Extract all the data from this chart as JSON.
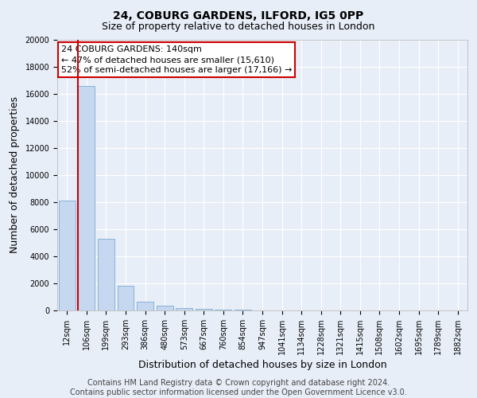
{
  "title1": "24, COBURG GARDENS, ILFORD, IG5 0PP",
  "title2": "Size of property relative to detached houses in London",
  "xlabel": "Distribution of detached houses by size in London",
  "ylabel": "Number of detached properties",
  "categories": [
    "12sqm",
    "106sqm",
    "199sqm",
    "293sqm",
    "386sqm",
    "480sqm",
    "573sqm",
    "667sqm",
    "760sqm",
    "854sqm",
    "947sqm",
    "1041sqm",
    "1134sqm",
    "1228sqm",
    "1321sqm",
    "1415sqm",
    "1508sqm",
    "1602sqm",
    "1695sqm",
    "1789sqm",
    "1882sqm"
  ],
  "values": [
    8100,
    16600,
    5300,
    1800,
    620,
    330,
    170,
    90,
    50,
    30,
    10,
    5,
    3,
    2,
    1,
    1,
    0,
    0,
    0,
    0,
    0
  ],
  "bar_color": "#c5d8f0",
  "bar_edge_color": "#7aaad4",
  "red_line_color": "#cc0000",
  "annotation_line1": "24 COBURG GARDENS: 140sqm",
  "annotation_line2": "← 47% of detached houses are smaller (15,610)",
  "annotation_line3": "52% of semi-detached houses are larger (17,166) →",
  "annotation_box_color": "#ffffff",
  "annotation_box_edge": "#cc0000",
  "ylim": [
    0,
    20000
  ],
  "yticks": [
    0,
    2000,
    4000,
    6000,
    8000,
    10000,
    12000,
    14000,
    16000,
    18000,
    20000
  ],
  "background_color": "#e8eef8",
  "footer_line1": "Contains HM Land Registry data © Crown copyright and database right 2024.",
  "footer_line2": "Contains public sector information licensed under the Open Government Licence v3.0.",
  "title_fontsize": 10,
  "subtitle_fontsize": 9,
  "axis_label_fontsize": 9,
  "tick_fontsize": 7,
  "annotation_fontsize": 8,
  "footer_fontsize": 7
}
